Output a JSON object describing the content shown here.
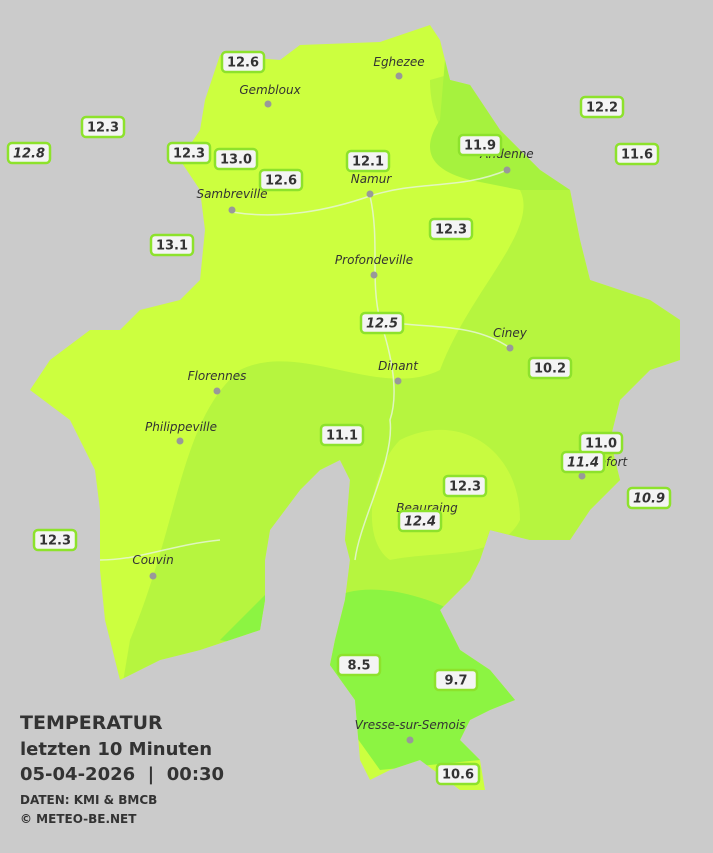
{
  "map": {
    "title": "TEMPERATUR",
    "subtitle": "letzten 10 Minuten",
    "datetime": "05-04-2026  |  00:30",
    "source": "DATEN: KMI & BMCB",
    "copyright": "© METEO-BE.NET",
    "cities": [
      "Eghezee",
      "Gembloux",
      "Andenne",
      "Namur",
      "Sambreville",
      "Profondeville",
      "Ciney",
      "Dinant",
      "Florennes",
      "Philippeville",
      "Rochefort",
      "Beauraing",
      "Couvin",
      "Vresse-sur-Semois"
    ],
    "stations": [
      {
        "label": "12.6",
        "italic": false
      },
      {
        "label": "12.3",
        "italic": false
      },
      {
        "label": "12.8",
        "italic": true
      },
      {
        "label": "12.3",
        "italic": false
      },
      {
        "label": "13.0",
        "italic": false
      },
      {
        "label": "12.6",
        "italic": false
      },
      {
        "label": "12.1",
        "italic": false
      },
      {
        "label": "11.9",
        "italic": false
      },
      {
        "label": "12.2",
        "italic": false
      },
      {
        "label": "11.6",
        "italic": false
      },
      {
        "label": "13.1",
        "italic": false
      },
      {
        "label": "12.3",
        "italic": false
      },
      {
        "label": "12.5",
        "italic": true
      },
      {
        "label": "10.2",
        "italic": false
      },
      {
        "label": "11.1",
        "italic": false
      },
      {
        "label": "11.0",
        "italic": false
      },
      {
        "label": "11.4",
        "italic": true
      },
      {
        "label": "10.9",
        "italic": true
      },
      {
        "label": "12.3",
        "italic": false
      },
      {
        "label": "12.4",
        "italic": true
      },
      {
        "label": "12.3",
        "italic": false
      },
      {
        "label": "8.5",
        "italic": false
      },
      {
        "label": "9.7",
        "italic": false
      },
      {
        "label": "10.6",
        "italic": false
      }
    ]
  }
}
